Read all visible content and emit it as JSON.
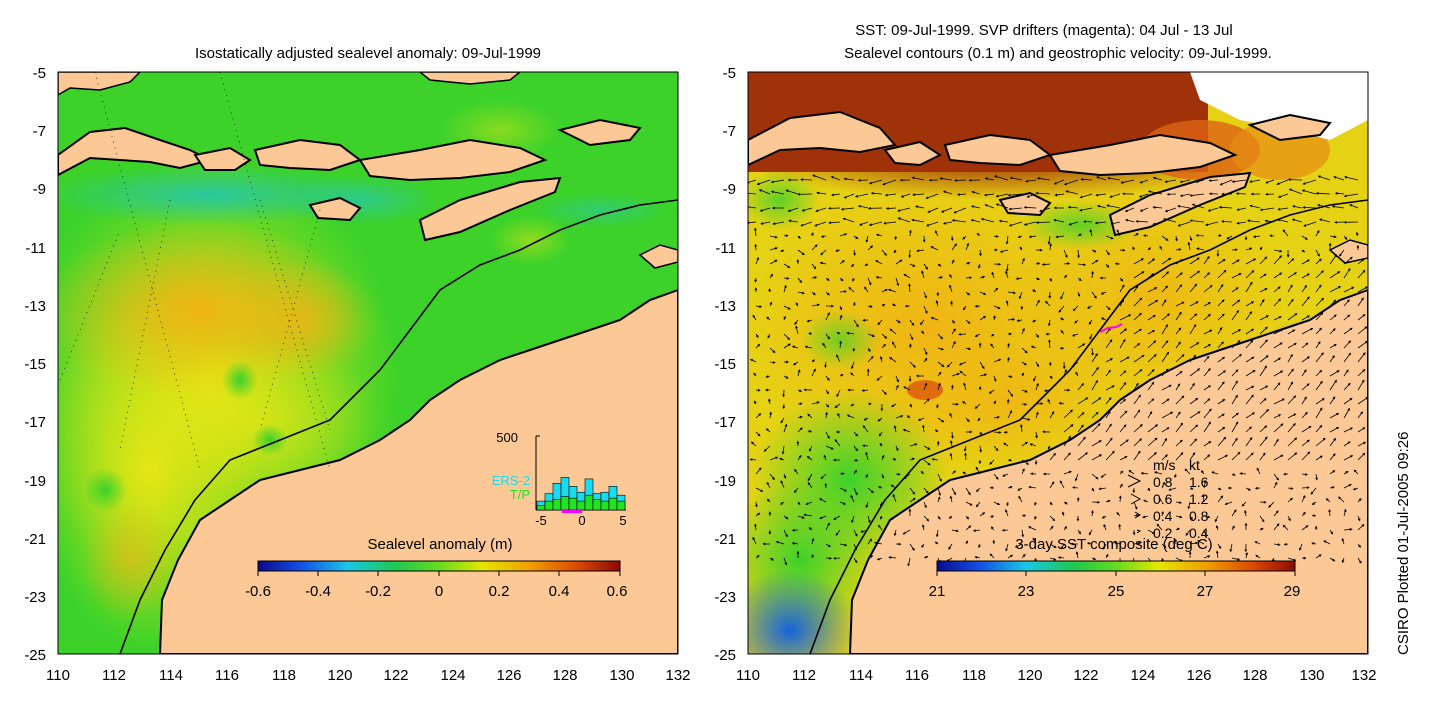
{
  "left_panel": {
    "title": "Isostatically adjusted sealevel anomaly: 09-Jul-1999",
    "y_ticks": [
      "-5",
      "-7",
      "-9",
      "-11",
      "-13",
      "-15",
      "-17",
      "-19",
      "-21",
      "-23",
      "-25"
    ],
    "x_ticks": [
      "110",
      "112",
      "114",
      "116",
      "118",
      "120",
      "122",
      "124",
      "126",
      "128",
      "130",
      "132"
    ],
    "colorbar": {
      "label": "Sealevel anomaly (m)",
      "ticks": [
        "-0.6",
        "-0.4",
        "-0.2",
        "0",
        "0.2",
        "0.4",
        "0.6"
      ],
      "colors": [
        "#0a0a8c",
        "#1450e6",
        "#19c8e6",
        "#1ec850",
        "#64dc1e",
        "#e6e600",
        "#f0a000",
        "#dc4a00",
        "#8c0a0a"
      ]
    },
    "inset_histogram": {
      "y_max_label": "500",
      "series_labels": [
        "ERS-2",
        "T/P"
      ],
      "series_colors": [
        "#19dcf0",
        "#1ee61e"
      ],
      "x_ticks": [
        "-5",
        "0",
        "5"
      ],
      "ers2_values": [
        60,
        110,
        180,
        220,
        160,
        120,
        210,
        110,
        120,
        160,
        100
      ],
      "tp_values": [
        30,
        60,
        70,
        90,
        80,
        60,
        100,
        70,
        60,
        80,
        60
      ]
    }
  },
  "right_panel": {
    "title_line1": "SST: 09-Jul-1999. SVP drifters (magenta): 04 Jul - 13 Jul",
    "title_line2": "Sealevel contours (0.1 m) and geostrophic velocity: 09-Jul-1999.",
    "y_ticks": [
      "-5",
      "-7",
      "-9",
      "-11",
      "-13",
      "-15",
      "-17",
      "-19",
      "-21",
      "-23",
      "-25"
    ],
    "x_ticks": [
      "110",
      "112",
      "114",
      "116",
      "118",
      "120",
      "122",
      "124",
      "126",
      "128",
      "130",
      "132"
    ],
    "colorbar": {
      "label": "3-day SST composite (deg C)",
      "ticks": [
        "21",
        "23",
        "25",
        "27",
        "29"
      ],
      "colors": [
        "#0a0a8c",
        "#1450e6",
        "#19c8e6",
        "#1ec850",
        "#64dc1e",
        "#e6e600",
        "#f0a000",
        "#dc4a00",
        "#8c0a0a"
      ]
    },
    "velocity_legend": {
      "header_ms": "m/s",
      "header_kt": "kt",
      "rows": [
        {
          "ms": "0.8",
          "kt": "1.6"
        },
        {
          "ms": "0.6",
          "kt": "1.2"
        },
        {
          "ms": "0.4",
          "kt": "0.8"
        },
        {
          "ms": "0.2",
          "kt": "0.4"
        }
      ]
    }
  },
  "side_credit": "CSIRO Plotted 01-Jul-2005 09:26",
  "colors": {
    "land": "#fcc896",
    "ocean_green": "#3cd22a",
    "ocean_lime": "#a0e61e",
    "ocean_yellow": "#e6e614",
    "ocean_orange": "#f0b414",
    "ocean_cyan": "#28c8a0",
    "sst_brown": "#a0320a",
    "drifter": "#ff00ff"
  }
}
